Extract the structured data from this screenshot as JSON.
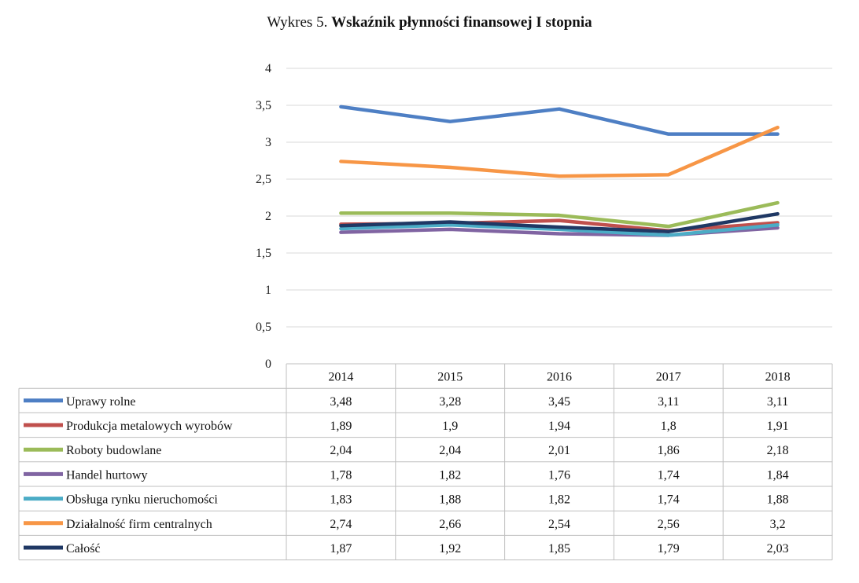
{
  "title": {
    "prefix": "Wykres 5. ",
    "main": "Wskaźnik płynności finansowej I stopnia"
  },
  "chart_data": {
    "type": "line",
    "title": "Wykres 5. Wskaźnik płynności finansowej I stopnia",
    "xlabel": "",
    "ylabel": "",
    "categories": [
      "2014",
      "2015",
      "2016",
      "2017",
      "2018"
    ],
    "ylim": [
      0,
      4
    ],
    "yticks": [
      "0",
      "0,5",
      "1",
      "1,5",
      "2",
      "2,5",
      "3",
      "3,5",
      "4"
    ],
    "grid": true,
    "legend": "data-table-below",
    "series": [
      {
        "name": "Uprawy rolne",
        "color": "#4e7fc4",
        "values": [
          3.48,
          3.28,
          3.45,
          3.11,
          3.11
        ],
        "labels": [
          "3,48",
          "3,28",
          "3,45",
          "3,11",
          "3,11"
        ]
      },
      {
        "name": "Produkcja metalowych wyrobów",
        "color": "#c0504d",
        "values": [
          1.89,
          1.9,
          1.94,
          1.8,
          1.91
        ],
        "labels": [
          "1,89",
          "1,9",
          "1,94",
          "1,8",
          "1,91"
        ]
      },
      {
        "name": "Roboty budowlane",
        "color": "#9bbb59",
        "values": [
          2.04,
          2.04,
          2.01,
          1.86,
          2.18
        ],
        "labels": [
          "2,04",
          "2,04",
          "2,01",
          "1,86",
          "2,18"
        ]
      },
      {
        "name": "Handel hurtowy",
        "color": "#8064a2",
        "values": [
          1.78,
          1.82,
          1.76,
          1.74,
          1.84
        ],
        "labels": [
          "1,78",
          "1,82",
          "1,76",
          "1,74",
          "1,84"
        ]
      },
      {
        "name": "Obsługa rynku nieruchomości",
        "color": "#4bacc6",
        "values": [
          1.83,
          1.88,
          1.82,
          1.74,
          1.88
        ],
        "labels": [
          "1,83",
          "1,88",
          "1,82",
          "1,74",
          "1,88"
        ]
      },
      {
        "name": "Działalność firm centralnych",
        "color": "#f79646",
        "values": [
          2.74,
          2.66,
          2.54,
          2.56,
          3.2
        ],
        "labels": [
          "2,74",
          "2,66",
          "2,54",
          "2,56",
          "3,2"
        ]
      },
      {
        "name": "Całość",
        "color": "#1f3864",
        "values": [
          1.87,
          1.92,
          1.85,
          1.79,
          2.03
        ],
        "labels": [
          "1,87",
          "1,92",
          "1,85",
          "1,79",
          "2,03"
        ]
      }
    ]
  }
}
